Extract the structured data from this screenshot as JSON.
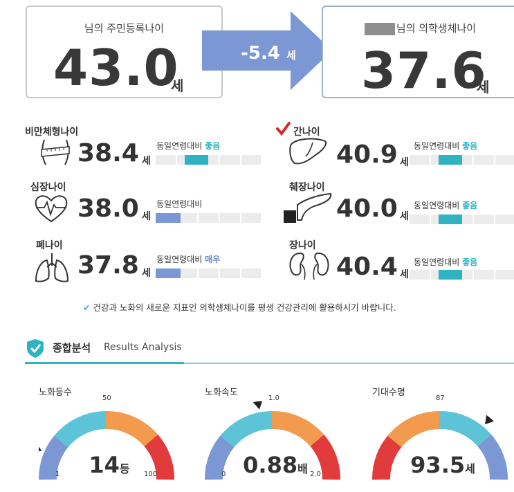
{
  "header": {
    "resident_age": {
      "title": "님의 주민등록나이",
      "value": "43.0",
      "unit": "세"
    },
    "difference": {
      "value": "-5.4",
      "unit": "세"
    },
    "bio_age": {
      "title": "님의 의학생체나이",
      "value": "37.6",
      "unit": "세"
    }
  },
  "metrics": [
    {
      "title": "비만체형나이",
      "value": "38.4",
      "unit": "세",
      "compare_label": "동일연령대비",
      "status": "좋음",
      "level": 0.37,
      "icon": "waist-tape-icon",
      "checked": false
    },
    {
      "title": "간나이",
      "value": "40.9",
      "unit": "세",
      "compare_label": "동일연령대비",
      "status": "좋음",
      "level": 0.37,
      "icon": "liver-icon",
      "checked": true
    },
    {
      "title": "심장나이",
      "value": "38.0",
      "unit": "세",
      "compare_label": "동일연령대비",
      "status": "",
      "level": 0.12,
      "icon": "heart-pulse-icon",
      "checked": false
    },
    {
      "title": "췌장나이",
      "value": "40.0",
      "unit": "세",
      "compare_label": "동일연령대비",
      "status": "좋음",
      "level": 0.37,
      "icon": "pancreas-icon",
      "checked": false
    },
    {
      "title": "폐나이",
      "value": "37.8",
      "unit": "세",
      "compare_label": "동일연령대비",
      "status": "매우",
      "level": 0.12,
      "icon": "lungs-icon",
      "checked": false
    },
    {
      "title": "장나이",
      "value": "40.4",
      "unit": "세",
      "compare_label": "동일연령대비",
      "status": "좋음",
      "level": 0.37,
      "icon": "kidneys-icon",
      "checked": false
    }
  ],
  "note": "건강과 노화의 새로운 지표인 의학생체나이를 평생 건강관리에 활용하시기 바랍니다.",
  "results": {
    "title": "종합분석",
    "subtitle": "Results Analysis"
  },
  "gauges": [
    {
      "label": "노화등수",
      "value": "14",
      "unit": "등",
      "min": "1",
      "mid": "50",
      "max": "100",
      "fraction": 0.13
    },
    {
      "label": "노화속도",
      "value": "0.88",
      "unit": "배",
      "min": "0",
      "mid": "1.0",
      "max": "2.0",
      "fraction": 0.44
    },
    {
      "label": "기대수명",
      "value": "93.5",
      "unit": "세",
      "min": "",
      "mid": "87",
      "max": "",
      "fraction": 0.72
    }
  ],
  "colors": {
    "accent": "#2fb3c2",
    "blue": "#7b97d4",
    "orange": "#f29a4e",
    "red": "#e23b3b",
    "arrow": "#7b97d4"
  }
}
